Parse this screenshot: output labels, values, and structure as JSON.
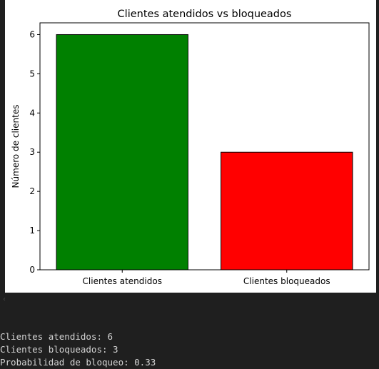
{
  "chart_data": {
    "type": "bar",
    "title": "Clientes atendidos vs bloqueados",
    "xlabel": "",
    "ylabel": "Número de clientes",
    "categories": [
      "Clientes atendidos",
      "Clientes bloqueados"
    ],
    "values": [
      6,
      3
    ],
    "colors": [
      "#008000",
      "#ff0000"
    ],
    "edge_color": "#000000",
    "ylim": [
      0,
      6.3
    ],
    "yticks": [
      0,
      1,
      2,
      3,
      4,
      5,
      6
    ],
    "grid": false,
    "legend": "none"
  },
  "ui": {
    "scroll_icon": "chevron-left-icon",
    "scroll_glyph": "‹"
  },
  "console": {
    "lines": [
      "Clientes atendidos: 6",
      "Clientes bloqueados: 3",
      "Probabilidad de bloqueo: 0.33"
    ]
  }
}
